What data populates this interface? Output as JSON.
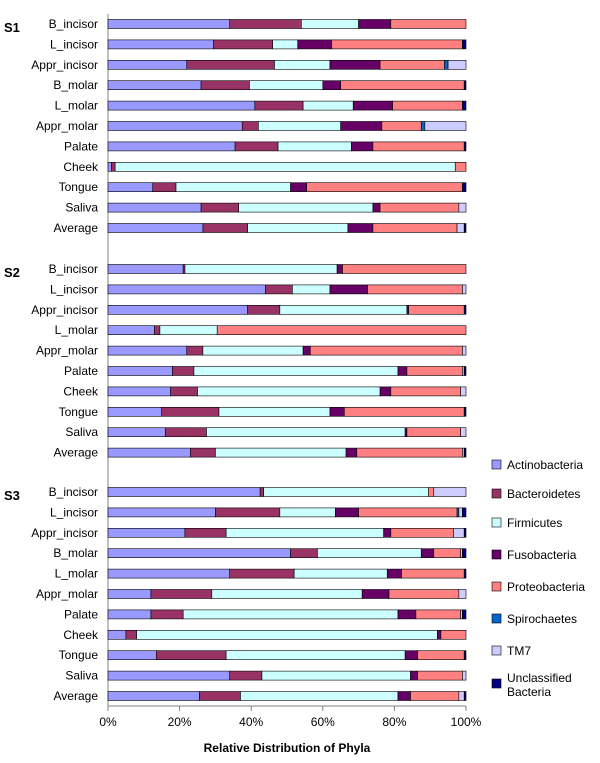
{
  "chart_data": {
    "type": "stacked-bar-horizontal",
    "xlabel": "Relative Distribution of Phyla",
    "xlim": [
      0,
      100
    ],
    "xticks": [
      "0%",
      "20%",
      "40%",
      "60%",
      "80%",
      "100%"
    ],
    "phyla": [
      {
        "name": "Actinobacteria",
        "color": "#9999ff"
      },
      {
        "name": "Bacteroidetes",
        "color": "#993366"
      },
      {
        "name": "Firmicutes",
        "color": "#ccffff"
      },
      {
        "name": "Fusobacteria",
        "color": "#660066"
      },
      {
        "name": "Proteobacteria",
        "color": "#ff8080"
      },
      {
        "name": "Spirochaetes",
        "color": "#0066cc"
      },
      {
        "name": "TM7",
        "color": "#ccccff"
      },
      {
        "name": "Unclassified Bacteria",
        "color": "#000080"
      }
    ],
    "groups": [
      {
        "name": "S1",
        "bars": [
          {
            "label": "B_incisor",
            "values": [
              34,
              20,
              16,
              9,
              21,
              0,
              0,
              0
            ]
          },
          {
            "label": "L_incisor",
            "values": [
              29.5,
              16.5,
              7,
              9.5,
              36.5,
              0,
              0,
              1
            ]
          },
          {
            "label": "Appr_incisor",
            "values": [
              22,
              24.5,
              15.5,
              14,
              18,
              1,
              5,
              0
            ]
          },
          {
            "label": "B_molar",
            "values": [
              26,
              13.5,
              20.5,
              5,
              34.5,
              0,
              0,
              0.5
            ]
          },
          {
            "label": "L_molar",
            "values": [
              41,
              13.5,
              14,
              11,
              19.5,
              0,
              0,
              1
            ]
          },
          {
            "label": "Appr_molar",
            "values": [
              37.5,
              4.5,
              23,
              11.5,
              11,
              1,
              11.5,
              0
            ]
          },
          {
            "label": "Palate",
            "values": [
              35.5,
              12,
              20.5,
              6,
              25.5,
              0,
              0,
              0.5
            ]
          },
          {
            "label": "Cheek",
            "values": [
              1,
              1,
              95,
              0,
              3,
              0,
              0,
              0
            ]
          },
          {
            "label": "Tongue",
            "values": [
              12.5,
              6.5,
              32,
              4.5,
              43.5,
              0,
              0,
              1
            ]
          },
          {
            "label": "Saliva",
            "values": [
              26,
              10.5,
              37.5,
              2,
              22,
              0,
              2,
              0
            ]
          },
          {
            "label": "Average",
            "values": [
              26.5,
              12.5,
              28,
              7,
              23.5,
              0,
              2,
              0.5
            ]
          }
        ]
      },
      {
        "name": "S2",
        "bars": [
          {
            "label": "B_incisor",
            "values": [
              21,
              0.5,
              42.5,
              1.5,
              34.5,
              0,
              0,
              0
            ]
          },
          {
            "label": "L_incisor",
            "values": [
              44,
              7.5,
              10.5,
              10.5,
              26.5,
              0,
              1,
              0
            ]
          },
          {
            "label": "Appr_incisor",
            "values": [
              39,
              9,
              35.5,
              0.5,
              15.5,
              0,
              0,
              0.5
            ]
          },
          {
            "label": "L_molar",
            "values": [
              13,
              1.5,
              16,
              0,
              69.5,
              0,
              0,
              0
            ]
          },
          {
            "label": "Appr_molar",
            "values": [
              22,
              4.5,
              28,
              2,
              42.5,
              0,
              1,
              0
            ]
          },
          {
            "label": "Palate",
            "values": [
              18,
              6,
              57,
              2.5,
              15.5,
              0,
              0.5,
              0.5
            ]
          },
          {
            "label": "Cheek",
            "values": [
              17.5,
              7.5,
              51,
              3,
              19.5,
              0,
              1.5,
              0
            ]
          },
          {
            "label": "Tongue",
            "values": [
              15,
              16,
              31,
              4,
              33.5,
              0,
              0,
              0.5
            ]
          },
          {
            "label": "Saliva",
            "values": [
              16,
              11.5,
              55.5,
              0.5,
              15,
              0,
              1.5,
              0
            ]
          },
          {
            "label": "Average",
            "values": [
              23,
              7,
              36.5,
              3,
              29.5,
              0,
              0.5,
              0.5
            ]
          }
        ]
      },
      {
        "name": "S3",
        "bars": [
          {
            "label": "B_incisor",
            "values": [
              42.5,
              1,
              46,
              0,
              1.5,
              0,
              9,
              0
            ]
          },
          {
            "label": "L_incisor",
            "values": [
              30,
              18,
              15.5,
              6.5,
              27.5,
              0.5,
              1,
              1
            ]
          },
          {
            "label": "Appr_incisor",
            "values": [
              21.5,
              11.5,
              44,
              2,
              17.5,
              0,
              3,
              0.5
            ]
          },
          {
            "label": "B_molar",
            "values": [
              51,
              7.5,
              29,
              3.5,
              7.5,
              0,
              0.5,
              1
            ]
          },
          {
            "label": "L_molar",
            "values": [
              34,
              18,
              26,
              4,
              17.5,
              0,
              0,
              0.5
            ]
          },
          {
            "label": "Appr_molar",
            "values": [
              12,
              17,
              42,
              7.5,
              19.5,
              0,
              2,
              0
            ]
          },
          {
            "label": "Palate",
            "values": [
              12,
              9,
              60,
              5,
              12.5,
              0,
              0.5,
              1
            ]
          },
          {
            "label": "Cheek",
            "values": [
              5,
              3,
              84,
              1,
              7,
              0,
              0,
              0
            ]
          },
          {
            "label": "Tongue",
            "values": [
              13.5,
              19.5,
              50,
              3.5,
              13,
              0,
              0,
              0.5
            ]
          },
          {
            "label": "Saliva",
            "values": [
              34,
              9,
              41.5,
              2,
              12.5,
              0,
              1,
              0
            ]
          },
          {
            "label": "Average",
            "values": [
              25.5,
              11.5,
              44,
              3.5,
              13.5,
              0,
              1.5,
              0.5
            ]
          }
        ]
      }
    ]
  }
}
